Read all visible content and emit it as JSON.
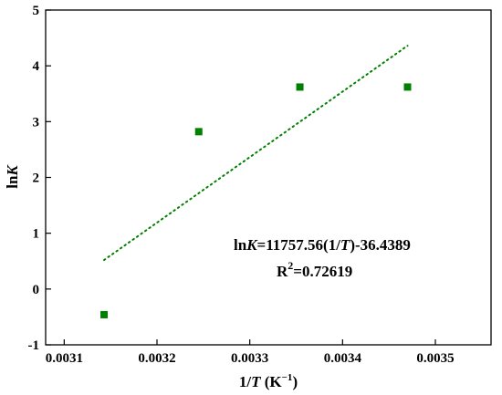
{
  "chart_data": {
    "type": "scatter",
    "xlabel": "1/T (K⁻¹)",
    "ylabel": "lnK",
    "xlim": [
      0.00308,
      0.00356
    ],
    "ylim": [
      -1,
      5
    ],
    "xticks": [
      "0.0031",
      "0.0032",
      "0.0033",
      "0.0034",
      "0.0035"
    ],
    "xtick_values": [
      0.0031,
      0.0032,
      0.0033,
      0.0034,
      0.0035
    ],
    "yticks": [
      "-1",
      "0",
      "1",
      "2",
      "3",
      "4",
      "5"
    ],
    "ytick_values": [
      -1,
      0,
      1,
      2,
      3,
      4,
      5
    ],
    "grid": false,
    "legend": "none",
    "marker": "square",
    "marker_color": "#008000",
    "series": [
      {
        "x": [
          0.003143,
          0.003245,
          0.003354,
          0.00347
        ],
        "y": [
          -0.46,
          2.82,
          3.62,
          3.62
        ]
      }
    ],
    "fit_line": {
      "style": "dotted",
      "color": "#008000",
      "x": [
        0.003143,
        0.00347
      ],
      "y": [
        0.52,
        4.36
      ]
    },
    "annotations": [
      "lnK=11757.56(1/T)-36.4389",
      "R2=0.72619"
    ]
  }
}
